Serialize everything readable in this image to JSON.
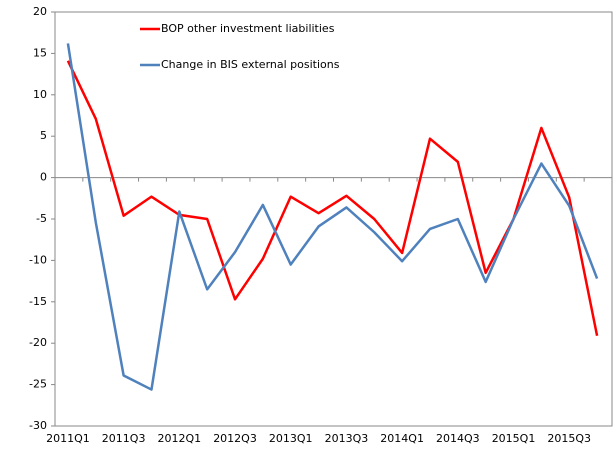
{
  "chart_data": {
    "type": "line",
    "categories": [
      "2011Q1",
      null,
      "2011Q3",
      null,
      "2012Q1",
      null,
      "2012Q3",
      null,
      "2013Q1",
      null,
      "2013Q3",
      null,
      "2014Q1",
      null,
      "2014Q3",
      null,
      "2015Q1",
      null,
      "2015Q3",
      null
    ],
    "series": [
      {
        "name": "BOP other investment liabilities",
        "color": "#ff0000",
        "values": [
          14.1,
          7.1,
          -4.6,
          -2.3,
          -4.5,
          -5.0,
          -14.7,
          -9.8,
          -2.3,
          -4.3,
          -2.2,
          -5.0,
          -9.1,
          4.7,
          1.9,
          -11.5,
          -5.0,
          6.0,
          -2.4,
          -19.1
        ]
      },
      {
        "name": "Change in BIS external positions",
        "color": "#4f81bd",
        "values": [
          16.2,
          -5.4,
          -23.9,
          -25.6,
          -4.1,
          -13.5,
          -9.0,
          -3.3,
          -10.5,
          -5.9,
          -3.6,
          -6.6,
          -10.1,
          -6.2,
          -5.0,
          -12.6,
          -5.0,
          1.7,
          -3.4,
          -12.2
        ]
      }
    ],
    "ylim": [
      -30,
      20
    ],
    "yticks": [
      -30,
      -25,
      -20,
      -15,
      -10,
      -5,
      0,
      5,
      10,
      15,
      20
    ],
    "legend": "top"
  }
}
